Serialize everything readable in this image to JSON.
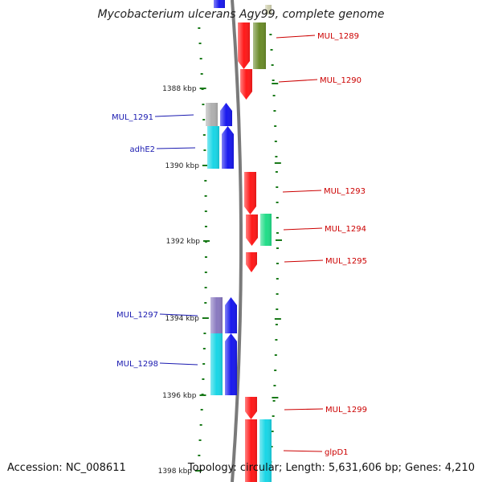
{
  "title": "Mycobacterium ulcerans Agy99, complete genome",
  "footer": {
    "accession": "Accession: NC_008611",
    "topology": "Topology: circular; Length: 5,631,606 bp; Genes: 4,210"
  },
  "colors": {
    "backbone": "#7a7a7a",
    "tick": "#1a7a1a",
    "forward_label": "#cc0000",
    "reverse_label": "#1a1ab0",
    "red": "#ff1a1a",
    "blue": "#1a1aee",
    "cyan": "#1ad6e6",
    "olive": "#6b8c2a",
    "green": "#22dd88",
    "gray": "#b0b0b0",
    "purple": "#8a7ac0"
  },
  "kbp_labels": [
    {
      "text": "1388 kbp"
    },
    {
      "text": "1390 kbp"
    },
    {
      "text": "1392 kbp"
    },
    {
      "text": "1394 kbp"
    },
    {
      "text": "1396 kbp"
    },
    {
      "text": "1398 kbp"
    }
  ],
  "gene_labels": [
    {
      "text": "MUL_1289",
      "strand": "forward"
    },
    {
      "text": "MUL_1290",
      "strand": "forward"
    },
    {
      "text": "MUL_1291",
      "strand": "reverse"
    },
    {
      "text": "adhE2",
      "strand": "reverse"
    },
    {
      "text": "MUL_1293",
      "strand": "forward"
    },
    {
      "text": "MUL_1294",
      "strand": "forward"
    },
    {
      "text": "MUL_1295",
      "strand": "forward"
    },
    {
      "text": "MUL_1297",
      "strand": "reverse"
    },
    {
      "text": "MUL_1298",
      "strand": "reverse"
    },
    {
      "text": "MUL_1299",
      "strand": "forward"
    },
    {
      "text": "glpD1",
      "strand": "forward"
    }
  ]
}
